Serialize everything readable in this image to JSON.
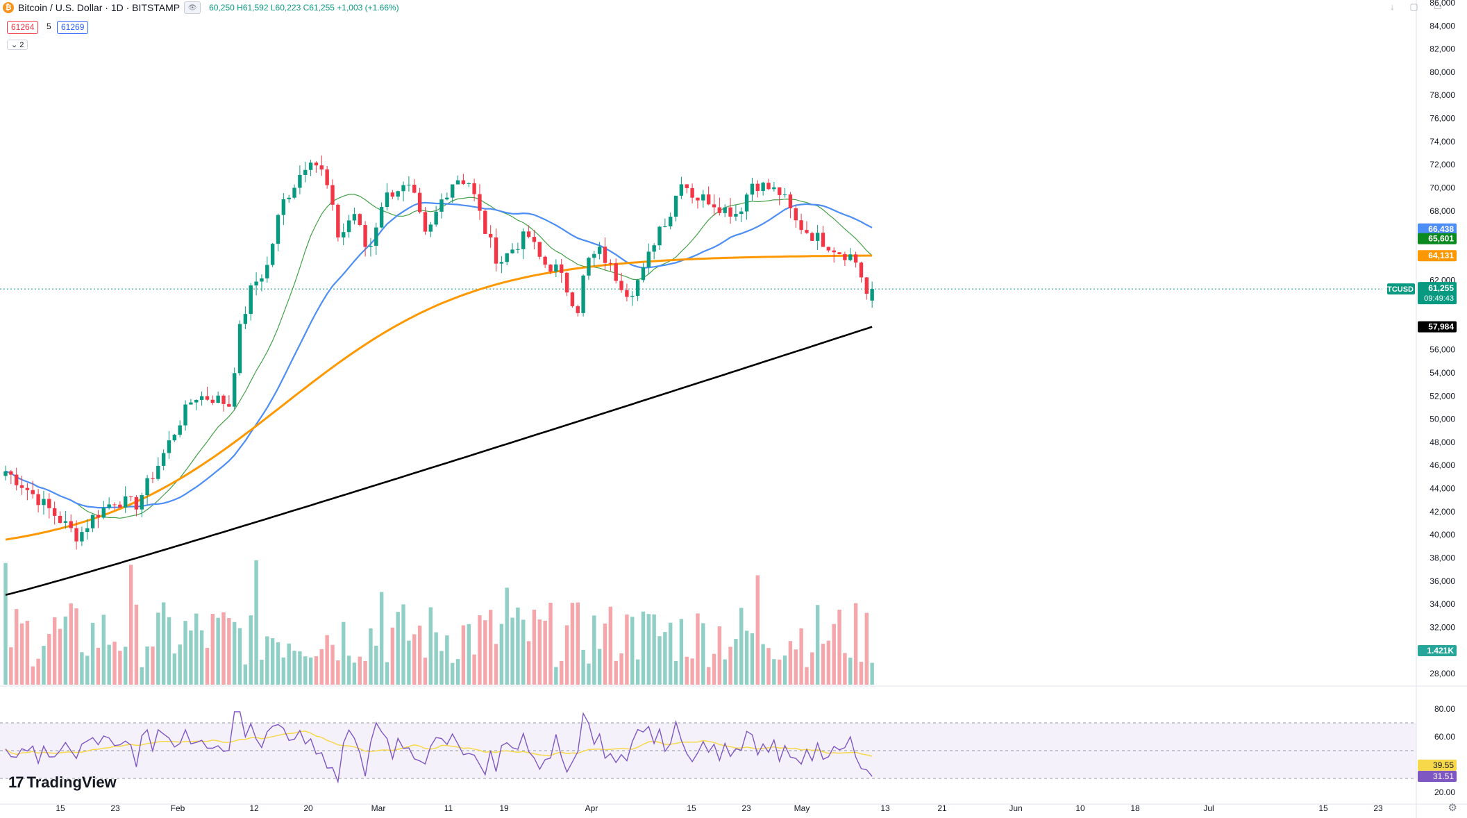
{
  "header": {
    "symbol": "Bitcoin / U.S. Dollar · 1D · BITSTAMP",
    "ohlc": "60,250 H61,592 L60,223 C61,255 +1,003 (+1.66%)",
    "bid": "61264",
    "spread": "5",
    "ask": "61269",
    "indicator_badge": "2",
    "icons": [
      "bitcoin-icon",
      "eye-icon",
      "arrow-down-icon",
      "maximize-icon",
      "minimize-icon"
    ]
  },
  "branding": {
    "logo_text": "TradingView"
  },
  "colors": {
    "up": "#089981",
    "down": "#f23645",
    "ma_blue": "#4c8ef5",
    "ma_green": "#43a047",
    "ma_orange": "#ff9800",
    "ma_black": "#000000",
    "rsi_line": "#7e57c2",
    "rsi_ma": "#f7d84a"
  },
  "chart_data": {
    "type": "candlestick",
    "x_ticks": [
      "15",
      "23",
      "Feb",
      "12",
      "20",
      "Mar",
      "11",
      "19",
      "Apr",
      "15",
      "23",
      "May",
      "13",
      "21",
      "Jun",
      "10",
      "18",
      "Jul",
      "15",
      "23"
    ],
    "price_ticks": [
      "86,000",
      "84,000",
      "82,000",
      "80,000",
      "78,000",
      "76,000",
      "74,000",
      "72,000",
      "70,000",
      "68,000",
      "66,000",
      "62,000",
      "56,000",
      "54,000",
      "52,000",
      "50,000",
      "48,000",
      "46,000",
      "44,000",
      "42,000",
      "40,000",
      "38,000",
      "36,000",
      "34,000",
      "32,000",
      "28,000"
    ],
    "price_range": [
      27000,
      86000
    ],
    "series": [
      {
        "name": "BTCUSD",
        "color": "#089981",
        "last_label": "BTCUSD",
        "last_value": "61,255",
        "countdown": "09:49:43"
      },
      {
        "last_value": "66,438",
        "color": "#4c8ef5"
      },
      {
        "last_value": "65,601",
        "color": "#0b8a1f"
      },
      {
        "last_value": "64,131",
        "color": "#ff9800"
      },
      {
        "last_value": "57,984",
        "color": "#000000"
      }
    ],
    "volume_label": "1.421K",
    "rsi": {
      "ticks": [
        "80.00",
        "60.00",
        "20.00"
      ],
      "ma_value": "39.55",
      "rsi_value": "31.51",
      "range": [
        20,
        80
      ],
      "bands": [
        70,
        50,
        30
      ]
    }
  }
}
